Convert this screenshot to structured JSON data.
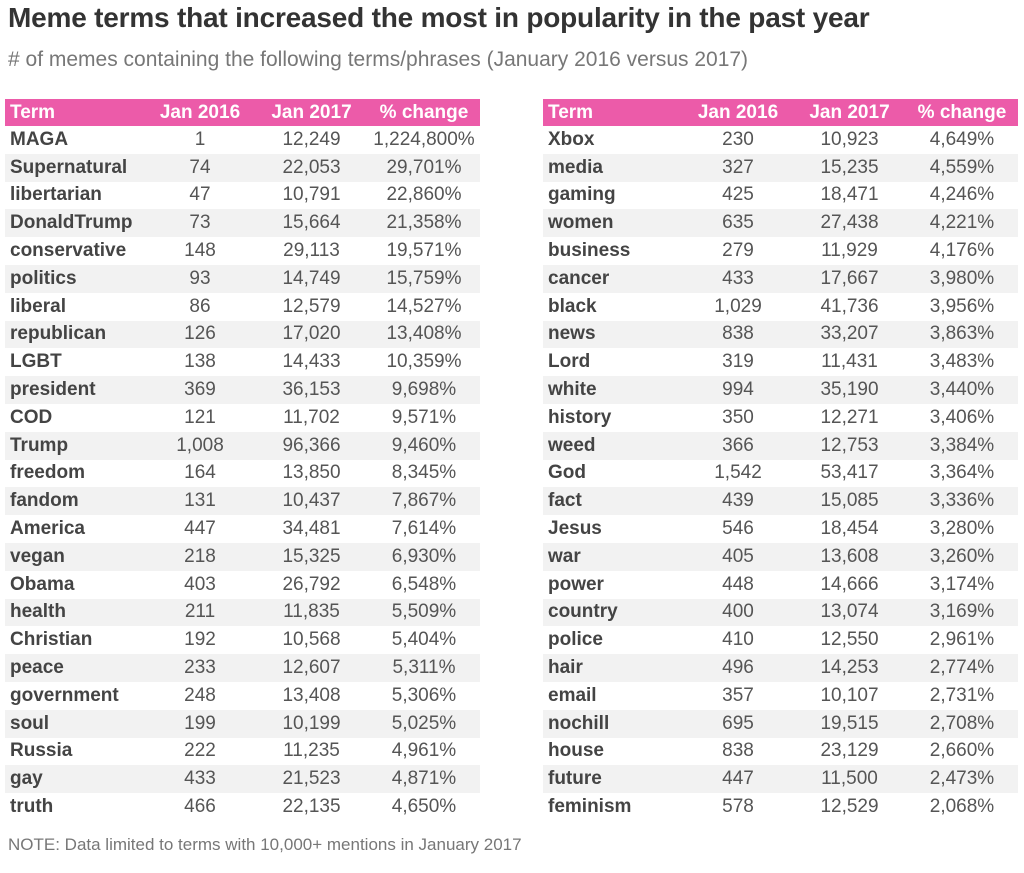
{
  "title": "Meme terms that increased the most in popularity in the past year",
  "subtitle": "# of memes containing the following terms/phrases (January 2016 versus 2017)",
  "note": "NOTE: Data limited to terms with 10,000+ mentions in January 2017",
  "colors": {
    "header": "#ec5ba9",
    "stripe": "#f2f2f2",
    "text": "#444444"
  },
  "chart_data": {
    "type": "table",
    "title": "Meme terms that increased the most in popularity in the past year",
    "columns": [
      "Term",
      "Jan 2016",
      "Jan 2017",
      "% change"
    ],
    "tables": [
      {
        "rows": [
          [
            "MAGA",
            "1",
            "12,249",
            "1,224,800%"
          ],
          [
            "Supernatural",
            "74",
            "22,053",
            "29,701%"
          ],
          [
            "libertarian",
            "47",
            "10,791",
            "22,860%"
          ],
          [
            "DonaldTrump",
            "73",
            "15,664",
            "21,358%"
          ],
          [
            "conservative",
            "148",
            "29,113",
            "19,571%"
          ],
          [
            "politics",
            "93",
            "14,749",
            "15,759%"
          ],
          [
            "liberal",
            "86",
            "12,579",
            "14,527%"
          ],
          [
            "republican",
            "126",
            "17,020",
            "13,408%"
          ],
          [
            "LGBT",
            "138",
            "14,433",
            "10,359%"
          ],
          [
            "president",
            "369",
            "36,153",
            "9,698%"
          ],
          [
            "COD",
            "121",
            "11,702",
            "9,571%"
          ],
          [
            "Trump",
            "1,008",
            "96,366",
            "9,460%"
          ],
          [
            "freedom",
            "164",
            "13,850",
            "8,345%"
          ],
          [
            "fandom",
            "131",
            "10,437",
            "7,867%"
          ],
          [
            "America",
            "447",
            "34,481",
            "7,614%"
          ],
          [
            "vegan",
            "218",
            "15,325",
            "6,930%"
          ],
          [
            "Obama",
            "403",
            "26,792",
            "6,548%"
          ],
          [
            "health",
            "211",
            "11,835",
            "5,509%"
          ],
          [
            "Christian",
            "192",
            "10,568",
            "5,404%"
          ],
          [
            "peace",
            "233",
            "12,607",
            "5,311%"
          ],
          [
            "government",
            "248",
            "13,408",
            "5,306%"
          ],
          [
            "soul",
            "199",
            "10,199",
            "5,025%"
          ],
          [
            "Russia",
            "222",
            "11,235",
            "4,961%"
          ],
          [
            "gay",
            "433",
            "21,523",
            "4,871%"
          ],
          [
            "truth",
            "466",
            "22,135",
            "4,650%"
          ]
        ]
      },
      {
        "rows": [
          [
            "Xbox",
            "230",
            "10,923",
            "4,649%"
          ],
          [
            "media",
            "327",
            "15,235",
            "4,559%"
          ],
          [
            "gaming",
            "425",
            "18,471",
            "4,246%"
          ],
          [
            "women",
            "635",
            "27,438",
            "4,221%"
          ],
          [
            "business",
            "279",
            "11,929",
            "4,176%"
          ],
          [
            "cancer",
            "433",
            "17,667",
            "3,980%"
          ],
          [
            "black",
            "1,029",
            "41,736",
            "3,956%"
          ],
          [
            "news",
            "838",
            "33,207",
            "3,863%"
          ],
          [
            "Lord",
            "319",
            "11,431",
            "3,483%"
          ],
          [
            "white",
            "994",
            "35,190",
            "3,440%"
          ],
          [
            "history",
            "350",
            "12,271",
            "3,406%"
          ],
          [
            "weed",
            "366",
            "12,753",
            "3,384%"
          ],
          [
            "God",
            "1,542",
            "53,417",
            "3,364%"
          ],
          [
            "fact",
            "439",
            "15,085",
            "3,336%"
          ],
          [
            "Jesus",
            "546",
            "18,454",
            "3,280%"
          ],
          [
            "war",
            "405",
            "13,608",
            "3,260%"
          ],
          [
            "power",
            "448",
            "14,666",
            "3,174%"
          ],
          [
            "country",
            "400",
            "13,074",
            "3,169%"
          ],
          [
            "police",
            "410",
            "12,550",
            "2,961%"
          ],
          [
            "hair",
            "496",
            "14,253",
            "2,774%"
          ],
          [
            "email",
            "357",
            "10,107",
            "2,731%"
          ],
          [
            "nochill",
            "695",
            "19,515",
            "2,708%"
          ],
          [
            "house",
            "838",
            "23,129",
            "2,660%"
          ],
          [
            "future",
            "447",
            "11,500",
            "2,473%"
          ],
          [
            "feminism",
            "578",
            "12,529",
            "2,068%"
          ]
        ]
      }
    ]
  }
}
